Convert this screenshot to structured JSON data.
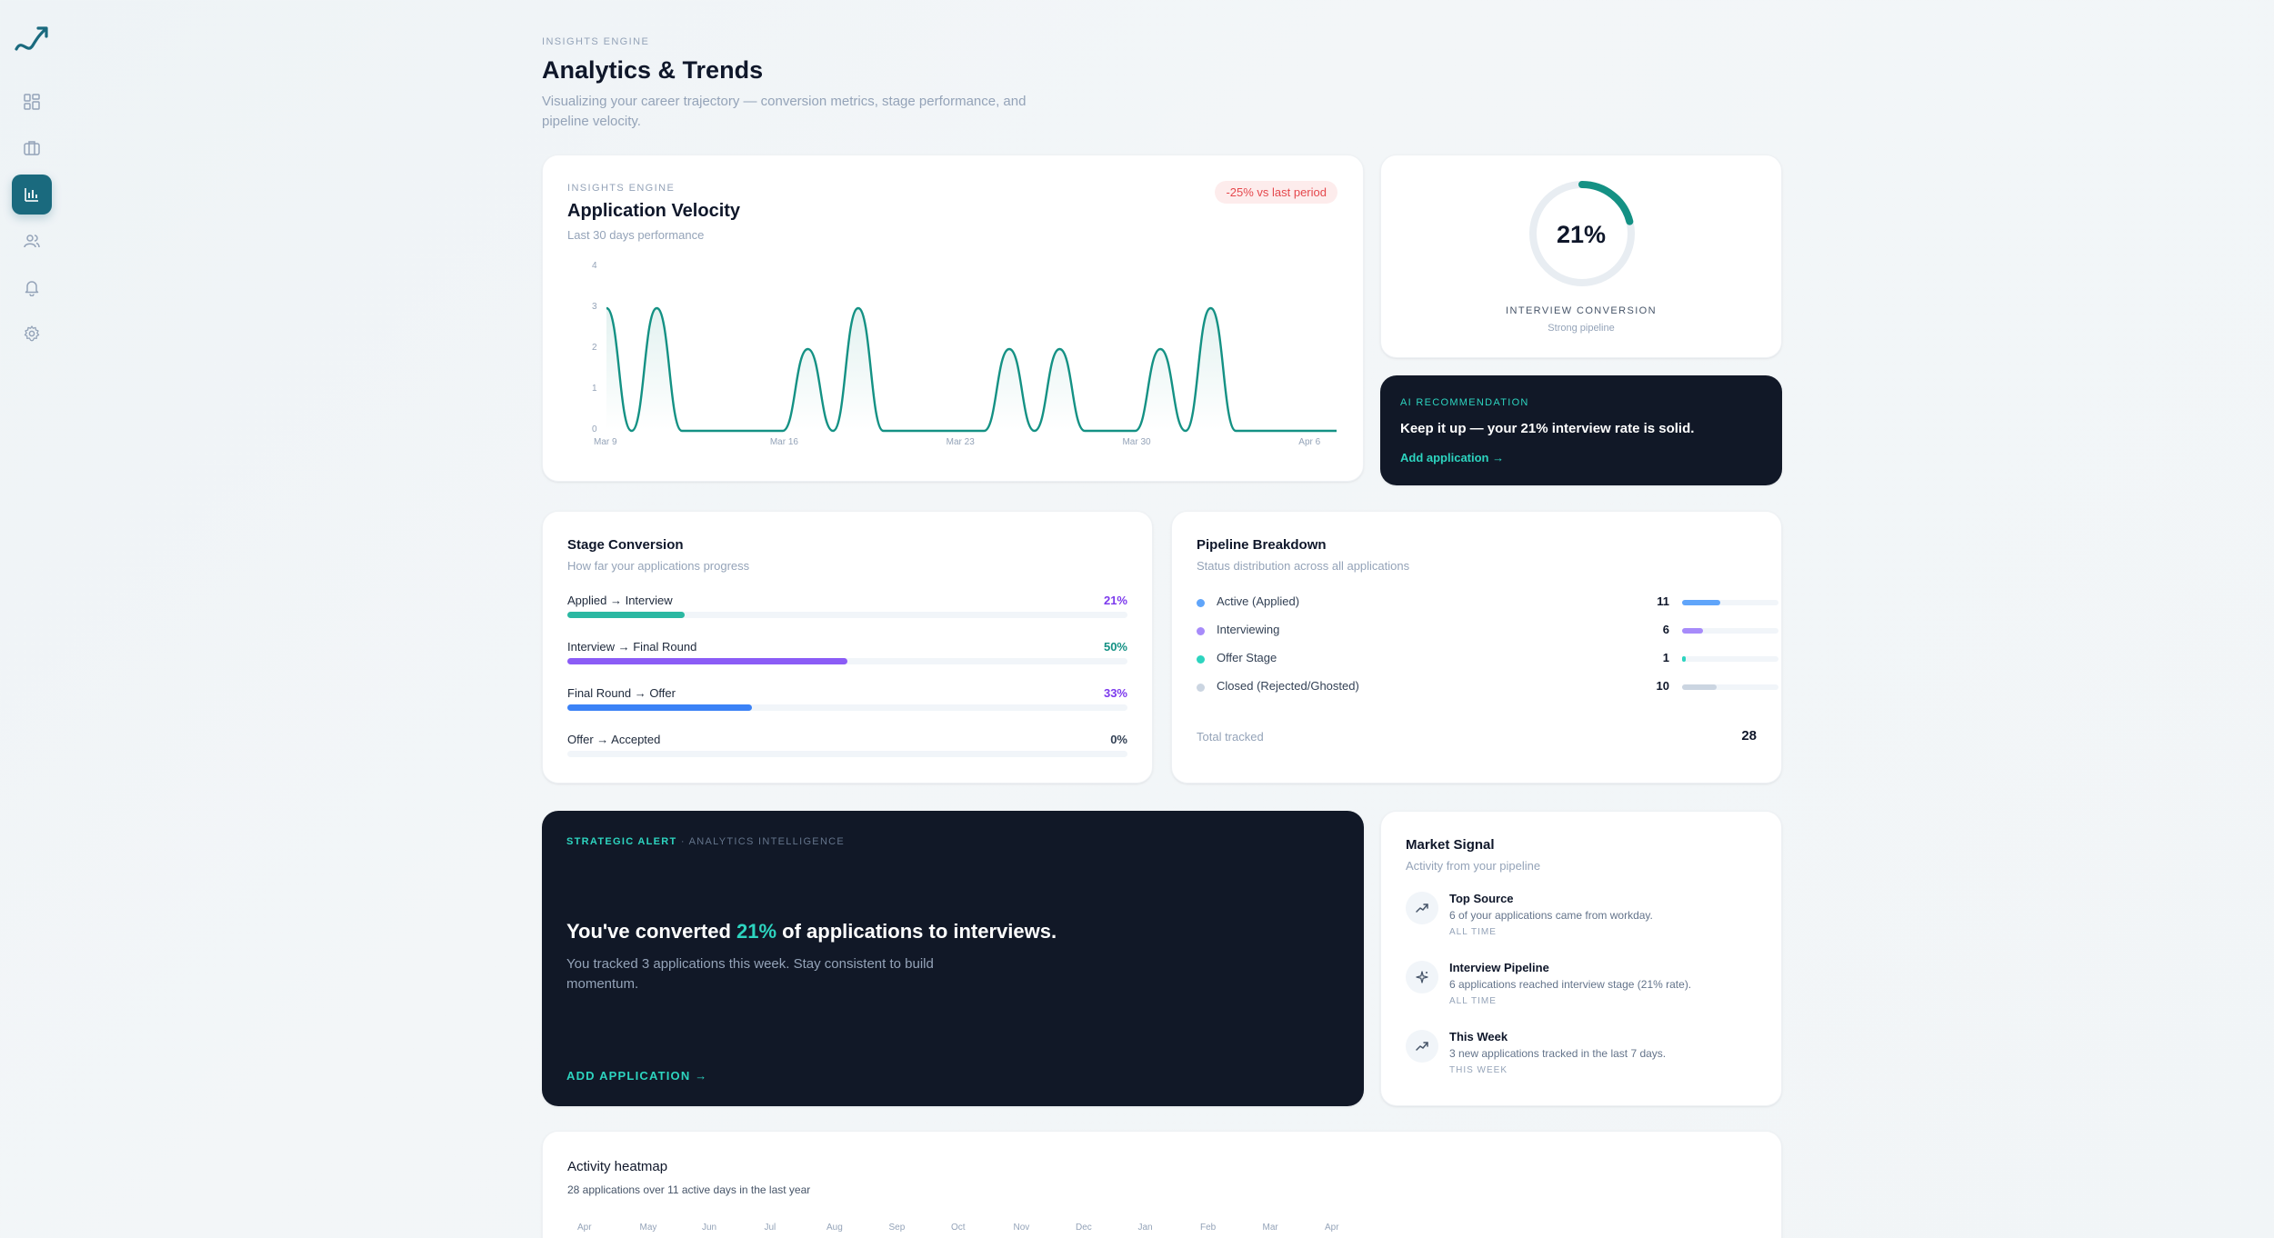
{
  "header": {
    "eyebrow": "INSIGHTS ENGINE",
    "title": "Analytics & Trends",
    "subtitle": "Visualizing your career trajectory — conversion metrics, stage performance, and pipeline velocity."
  },
  "sidebar": {
    "items": [
      {
        "icon": "dashboard-icon"
      },
      {
        "icon": "briefcase-icon"
      },
      {
        "icon": "bar-chart-icon",
        "active": true
      },
      {
        "icon": "users-icon"
      },
      {
        "icon": "bell-icon"
      },
      {
        "icon": "gear-icon"
      }
    ]
  },
  "velocity": {
    "eyebrow": "INSIGHTS ENGINE",
    "title": "Application Velocity",
    "subtitle": "Last 30 days performance",
    "badge": "-25% vs last period",
    "y_ticks": [
      "4",
      "3",
      "2",
      "1",
      "0"
    ],
    "x_ticks": [
      "Mar 9",
      "Mar 16",
      "Mar 23",
      "Mar 30",
      "Apr 6"
    ]
  },
  "chart_data": {
    "type": "line",
    "title": "Application Velocity",
    "ylim": [
      0,
      4
    ],
    "x": [
      "Mar 9",
      "Mar 10",
      "Mar 11",
      "Mar 12",
      "Mar 13",
      "Mar 14",
      "Mar 15",
      "Mar 16",
      "Mar 17",
      "Mar 18",
      "Mar 19",
      "Mar 20",
      "Mar 21",
      "Mar 22",
      "Mar 23",
      "Mar 24",
      "Mar 25",
      "Mar 26",
      "Mar 27",
      "Mar 28",
      "Mar 29",
      "Mar 30",
      "Mar 31",
      "Apr 1",
      "Apr 2",
      "Apr 3",
      "Apr 4",
      "Apr 5",
      "Apr 6",
      "Apr 7"
    ],
    "series": [
      {
        "values": [
          3,
          0,
          3,
          0,
          0,
          0,
          0,
          0,
          2,
          0,
          3,
          0,
          0,
          0,
          0,
          0,
          2,
          0,
          2,
          0,
          0,
          0,
          2,
          0,
          3,
          0,
          0,
          0,
          0,
          0
        ]
      }
    ],
    "grid": false,
    "color": "#149184"
  },
  "conversion": {
    "value": "21%",
    "fraction": 0.21,
    "label": "INTERVIEW CONVERSION",
    "sub": "Strong pipeline",
    "color": "#149184"
  },
  "ai": {
    "eyebrow": "AI RECOMMENDATION",
    "text": "Keep it up — your 21% interview rate is solid.",
    "link": "Add application →"
  },
  "stages": {
    "title": "Stage Conversion",
    "subtitle": "How far your applications progress",
    "rows": [
      {
        "label": "Applied → Interview",
        "pct": "21%",
        "value": 21,
        "color": "#2bb8a2",
        "pct_color": "#7c3aed"
      },
      {
        "label": "Interview → Final Round",
        "pct": "50%",
        "value": 50,
        "color": "#8b5cf6",
        "pct_color": "#149184"
      },
      {
        "label": "Final Round → Offer",
        "pct": "33%",
        "value": 33,
        "color": "#3b82f6",
        "pct_color": "#7c3aed"
      },
      {
        "label": "Offer → Accepted",
        "pct": "0%",
        "value": 0,
        "color": "#cbd5e1",
        "pct_color": "#334155"
      }
    ]
  },
  "pipeline": {
    "title": "Pipeline Breakdown",
    "subtitle": "Status distribution across all applications",
    "rows": [
      {
        "label": "Active (Applied)",
        "count": "11",
        "value": 11,
        "color": "#60a5fa"
      },
      {
        "label": "Interviewing",
        "count": "6",
        "value": 6,
        "color": "#a78bfa"
      },
      {
        "label": "Offer Stage",
        "count": "1",
        "value": 1,
        "color": "#2dd4bf"
      },
      {
        "label": "Closed (Rejected/Ghosted)",
        "count": "10",
        "value": 10,
        "color": "#cbd5e1"
      }
    ],
    "total_label": "Total tracked",
    "total": "28",
    "total_value": 28
  },
  "alert": {
    "eyebrow_a": "STRATEGIC ALERT",
    "eyebrow_b": "· ANALYTICS INTELLIGENCE",
    "head_pre": "You've converted ",
    "head_hl": "21%",
    "head_post": " of applications to interviews.",
    "body": "You tracked 3 applications this week. Stay consistent to build momentum.",
    "link": "ADD APPLICATION →"
  },
  "market": {
    "title": "Market Signal",
    "subtitle": "Activity from your pipeline",
    "items": [
      {
        "icon": "trend-up-icon",
        "title": "Top Source",
        "desc": "6 of your applications came from workday.",
        "tag": "ALL TIME"
      },
      {
        "icon": "sparkle-icon",
        "title": "Interview Pipeline",
        "desc": "6 applications reached interview stage (21% rate).",
        "tag": "ALL TIME"
      },
      {
        "icon": "trend-up-icon",
        "title": "This Week",
        "desc": "3 new applications tracked in the last 7 days.",
        "tag": "THIS WEEK"
      }
    ]
  },
  "heatmap": {
    "title": "Activity heatmap",
    "subtitle": "28 applications over 11 active days in the last year",
    "months": [
      "Apr",
      "May",
      "Jun",
      "Jul",
      "Aug",
      "Sep",
      "Oct",
      "Nov",
      "Dec",
      "Jan",
      "Feb",
      "Mar",
      "Apr"
    ]
  }
}
